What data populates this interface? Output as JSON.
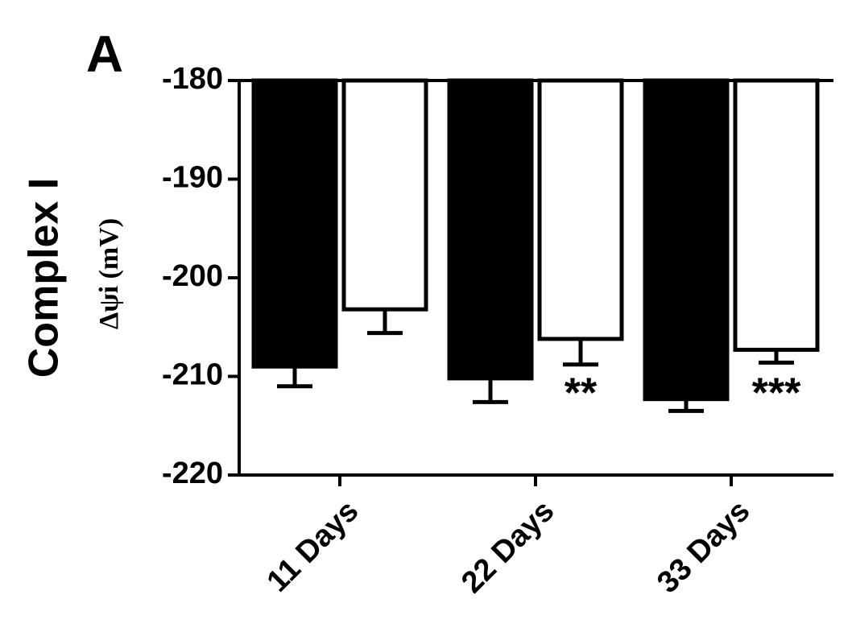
{
  "chart_data": {
    "type": "bar",
    "panel": "A",
    "title": "Complex I",
    "ylabel": "Δψi (mV)",
    "categories": [
      "11 Days",
      "22 Days",
      "33 Days"
    ],
    "series": [
      {
        "color": "#000000",
        "values": [
          -209,
          -210.2,
          -212.3
        ],
        "errors": [
          2,
          2.4,
          1.2
        ]
      },
      {
        "color": "#ffffff",
        "values": [
          -203.2,
          -206.2,
          -207.3
        ],
        "errors": [
          2.4,
          2.6,
          1.3
        ]
      }
    ],
    "annotations": [
      "**",
      "***"
    ],
    "ylim": [
      -220,
      -180
    ],
    "yticks": [
      -180,
      -190,
      -200,
      -210,
      -220
    ]
  }
}
